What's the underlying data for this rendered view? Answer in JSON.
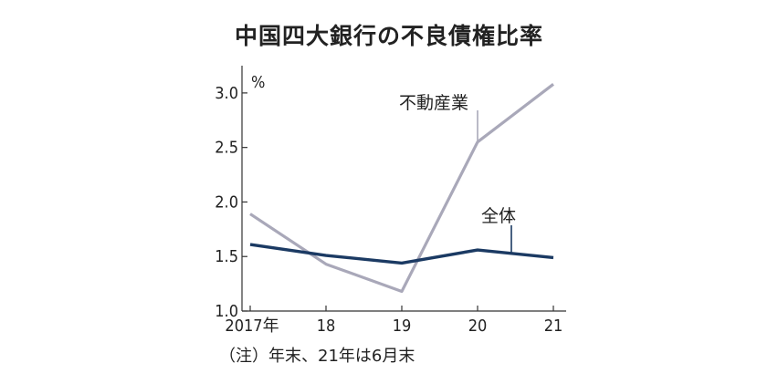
{
  "chart_data": {
    "type": "line",
    "title": "中国四大銀行の不良債権比率",
    "unit_label": "%",
    "x": [
      "2017年",
      "18",
      "19",
      "20",
      "21"
    ],
    "ylim": [
      1.0,
      3.25
    ],
    "yticks": [
      "1.0",
      "1.5",
      "2.0",
      "2.5",
      "3.0"
    ],
    "series": [
      {
        "name": "不動産業",
        "values": [
          1.89,
          1.43,
          1.18,
          2.55,
          3.08
        ],
        "color": "#a9a8b9"
      },
      {
        "name": "全体",
        "values": [
          1.61,
          1.51,
          1.44,
          1.56,
          1.49
        ],
        "color": "#1b3a63"
      }
    ],
    "note": "（注）年末、21年は6月末",
    "grid": false
  }
}
